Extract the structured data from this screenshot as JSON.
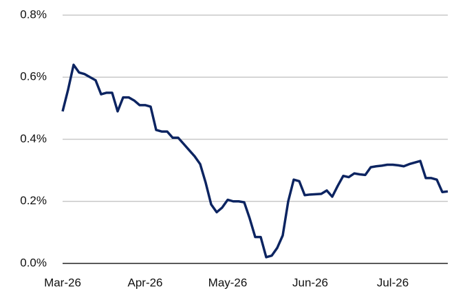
{
  "chart_data": {
    "type": "line",
    "categories": [
      "Mar-26",
      null,
      null,
      null,
      null,
      null,
      null,
      null,
      null,
      null,
      null,
      null,
      null,
      null,
      null,
      "Apr-26",
      null,
      null,
      null,
      null,
      null,
      null,
      null,
      null,
      null,
      null,
      null,
      null,
      null,
      null,
      "May-26",
      null,
      null,
      null,
      null,
      null,
      null,
      null,
      null,
      null,
      null,
      null,
      null,
      null,
      null,
      "Jun-26",
      null,
      null,
      null,
      null,
      null,
      null,
      null,
      null,
      null,
      null,
      null,
      null,
      null,
      null,
      "Jul-26",
      null,
      null,
      null,
      null,
      null,
      null,
      null,
      null,
      null,
      null
    ],
    "series": [
      {
        "color": "#0c2461",
        "values": [
          0.49,
          0.56,
          0.64,
          0.615,
          0.61,
          0.6,
          0.59,
          0.545,
          0.55,
          0.55,
          0.49,
          0.535,
          0.535,
          0.525,
          0.51,
          0.51,
          0.505,
          0.43,
          0.425,
          0.425,
          0.405,
          0.405,
          0.385,
          0.365,
          0.345,
          0.32,
          0.26,
          0.19,
          0.165,
          0.18,
          0.205,
          0.2,
          0.2,
          0.197,
          0.145,
          0.085,
          0.085,
          0.02,
          0.025,
          0.05,
          0.09,
          0.2,
          0.27,
          0.265,
          0.22,
          0.222,
          0.223,
          0.224,
          0.235,
          0.215,
          0.25,
          0.282,
          0.278,
          0.29,
          0.287,
          0.285,
          0.31,
          0.313,
          0.315,
          0.318,
          0.318,
          0.316,
          0.313,
          0.32,
          0.325,
          0.33,
          0.275,
          0.275,
          0.27,
          0.23,
          0.232
        ]
      }
    ],
    "ylim": [
      0,
      0.8
    ],
    "yticks": [
      {
        "value": 0,
        "label": "0.0%"
      },
      {
        "value": 0.2,
        "label": "0.2%"
      },
      {
        "value": 0.4,
        "label": "0.4%"
      },
      {
        "value": 0.6,
        "label": "0.6%"
      },
      {
        "value": 0.8,
        "label": "0.8%"
      }
    ],
    "grid": true
  }
}
